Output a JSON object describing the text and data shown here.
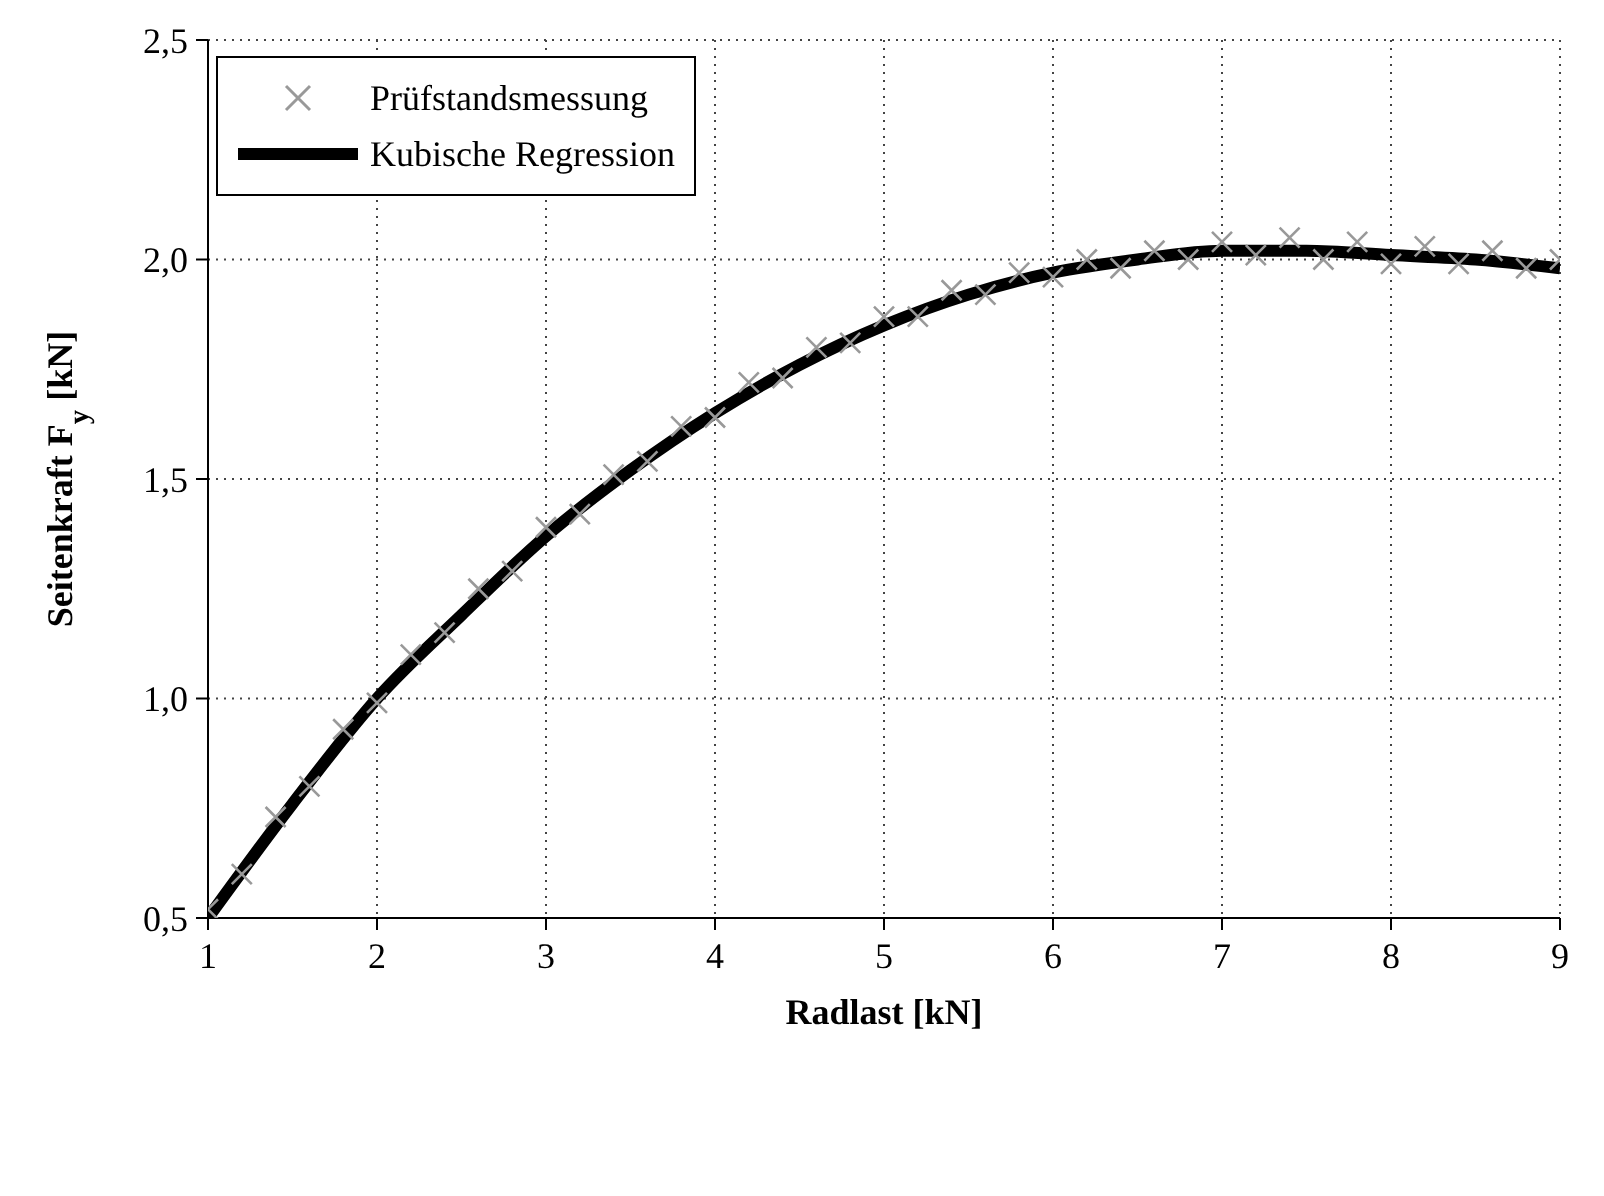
{
  "chart_data": {
    "type": "scatter",
    "xlabel": "Radlast [kN]",
    "ylabel": "Seitenkraft F$_{y}$ [kN]",
    "xlim": [
      1,
      9
    ],
    "xticks": [
      1,
      2,
      3,
      4,
      5,
      6,
      7,
      8,
      9
    ],
    "ylim": [
      0.5,
      2.5
    ],
    "yticks": [
      {
        "value": 0.5,
        "label": "0,5"
      },
      {
        "value": 1,
        "label": "1,0"
      },
      {
        "value": 1.5,
        "label": "1,5"
      },
      {
        "value": 2,
        "label": "2,0"
      },
      {
        "value": 2.5,
        "label": "2,5"
      }
    ],
    "grid": true,
    "legend": "top left",
    "series": [
      {
        "name": "Prüfstandsmessung",
        "marker": "cross",
        "color": "#999999",
        "x": [
          1.0,
          1.2,
          1.4,
          1.6,
          1.8,
          2.0,
          2.2,
          2.4,
          2.6,
          2.8,
          3.0,
          3.2,
          3.4,
          3.6,
          3.8,
          4.0,
          4.2,
          4.4,
          4.6,
          4.8,
          5.0,
          5.2,
          5.4,
          5.6,
          5.8,
          6.0,
          6.2,
          6.4,
          6.6,
          6.8,
          7.0,
          7.2,
          7.4,
          7.6,
          7.8,
          8.0,
          8.2,
          8.4,
          8.6,
          8.8,
          9.0
        ],
        "values": [
          0.52,
          0.6,
          0.73,
          0.8,
          0.93,
          0.99,
          1.1,
          1.15,
          1.25,
          1.29,
          1.39,
          1.42,
          1.51,
          1.54,
          1.62,
          1.64,
          1.72,
          1.73,
          1.8,
          1.81,
          1.87,
          1.87,
          1.93,
          1.92,
          1.97,
          1.96,
          2.0,
          1.98,
          2.02,
          2.0,
          2.04,
          2.01,
          2.05,
          2.0,
          2.04,
          1.99,
          2.03,
          1.99,
          2.02,
          1.98,
          2.0
        ]
      },
      {
        "name": "Kubische Regression",
        "type": "line",
        "marker": "none",
        "color": "#000000",
        "x": [
          1,
          1.5,
          2,
          2.5,
          3,
          3.5,
          4,
          4.5,
          5,
          5.5,
          6,
          6.5,
          7,
          7.5,
          8,
          8.5,
          9
        ],
        "values": [
          0.5,
          0.76,
          1.0,
          1.19,
          1.37,
          1.52,
          1.65,
          1.76,
          1.85,
          1.92,
          1.97,
          2.0,
          2.02,
          2.02,
          2.01,
          2.0,
          1.98
        ]
      }
    ]
  }
}
